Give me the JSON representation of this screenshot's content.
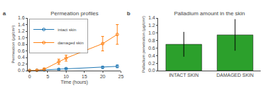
{
  "chart_data": [
    {
      "type": "line",
      "title": "Permeation profiles",
      "annotations": [
        "a"
      ],
      "x_label": "Time (hours)",
      "y_label": "Permeation (μg/cm²)",
      "x": [
        0,
        2,
        4,
        8,
        10,
        20,
        24
      ],
      "series": [
        {
          "name": "intact skin",
          "values": [
            0.0,
            0.01,
            0.02,
            0.04,
            0.06,
            0.1,
            0.13
          ],
          "errors": [
            0.0,
            0.005,
            0.01,
            0.015,
            0.02,
            0.03,
            0.04
          ]
        },
        {
          "name": "damaged skin",
          "values": [
            0.0,
            0.01,
            0.04,
            0.27,
            0.38,
            0.82,
            1.1
          ],
          "errors": [
            0.0,
            0.01,
            0.04,
            0.08,
            0.09,
            0.22,
            0.3
          ]
        }
      ],
      "xlim": [
        -0.5,
        25
      ],
      "xticks": [
        0,
        5,
        10,
        15,
        20,
        25
      ],
      "ylim": [
        0,
        1.6
      ],
      "yticks": [
        {
          "value": 0.0,
          "label": "0.0"
        },
        0.2,
        0.4,
        0.6,
        0.8,
        {
          "value": 1.0,
          "label": "1.0"
        },
        1.2,
        1.4,
        1.6
      ],
      "marker": "circle-open",
      "line_style": "solid",
      "legend": "upper left",
      "grid": false
    },
    {
      "type": "bar",
      "title": "Palladium amount in the skin",
      "annotations": [
        "b"
      ],
      "y_label": "Palladium penetration (μg/cm²)",
      "categories": [
        "INTACT SKIN",
        "DAMAGED SKIN"
      ],
      "values": [
        0.7,
        0.95
      ],
      "error_upper": [
        0.33,
        0.42
      ],
      "error_lower": [
        0.33,
        0.42
      ],
      "ylim": [
        0.0,
        1.4
      ],
      "yticks": [
        {
          "value": 0.0,
          "label": "0.0"
        },
        0.2,
        0.4,
        0.6,
        0.8,
        {
          "value": 1.0,
          "label": "1.0"
        },
        1.2,
        1.4
      ],
      "grid": false
    }
  ]
}
